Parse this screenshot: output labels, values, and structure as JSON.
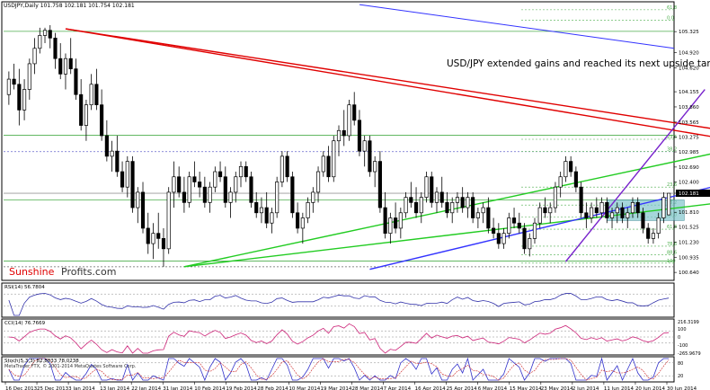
{
  "chart_data": {
    "type": "candlestick",
    "title": "USDJPY,Daily  101.758 102.181 101.754 102.181",
    "annotation": "USD/JPY extended gains and reached its next upside target.",
    "watermark": {
      "part1": "Sunshine",
      "part2": "Profits.com"
    },
    "copyright": "MetaTrader FTX, © 2001-2014 MetaQuotes Software Corp.",
    "current_price": "102.181",
    "price_ylim": [
      100.52,
      105.87
    ],
    "price_ticks": [
      "105.325",
      "104.920",
      "104.620",
      "104.155",
      "103.860",
      "103.565",
      "103.275",
      "102.985",
      "102.690",
      "102.400",
      "102.181",
      "101.810",
      "101.525",
      "101.230",
      "100.935",
      "100.640"
    ],
    "x_tick_labels": [
      "16 Dec 2013",
      "25 Dec 2013",
      "3 Jan 2014",
      "13 Jan 2014",
      "22 Jan 2014",
      "31 Jan 2014",
      "10 Feb 2014",
      "19 Feb 2014",
      "28 Feb 2014",
      "10 Mar 2014",
      "19 Mar 2014",
      "28 Mar 2014",
      "7 Apr 2014",
      "16 Apr 2014",
      "25 Apr 2014",
      "6 May 2014",
      "15 May 2014",
      "23 May 2014",
      "2 Jun 2014",
      "11 Jun 2014",
      "20 Jun 2014",
      "30 Jun 2014"
    ],
    "fib_labels": [
      "61.8",
      "0.0",
      "23.6",
      "38.2",
      "23.6",
      "38.2",
      "50.0",
      "61.8",
      "78.6",
      "88.6",
      "100"
    ],
    "candles": [
      [
        104.1,
        104.55,
        103.9,
        104.4
      ],
      [
        104.4,
        104.7,
        104.2,
        104.3
      ],
      [
        104.3,
        104.6,
        103.5,
        103.8
      ],
      [
        103.8,
        104.4,
        103.6,
        104.2
      ],
      [
        104.2,
        104.8,
        104.0,
        104.7
      ],
      [
        104.7,
        105.2,
        104.5,
        105.0
      ],
      [
        105.0,
        105.4,
        104.9,
        105.25
      ],
      [
        105.25,
        105.4,
        105.1,
        105.35
      ],
      [
        105.35,
        105.45,
        105.0,
        105.2
      ],
      [
        105.2,
        105.3,
        104.6,
        104.8
      ],
      [
        104.8,
        105.1,
        104.4,
        104.5
      ],
      [
        104.5,
        104.9,
        104.2,
        104.8
      ],
      [
        104.8,
        105.2,
        104.5,
        104.6
      ],
      [
        104.6,
        104.8,
        104.0,
        104.1
      ],
      [
        104.1,
        104.4,
        103.4,
        103.5
      ],
      [
        103.5,
        104.0,
        103.2,
        103.9
      ],
      [
        103.9,
        104.5,
        103.8,
        104.3
      ],
      [
        104.3,
        104.6,
        103.8,
        103.9
      ],
      [
        103.9,
        104.2,
        103.2,
        103.3
      ],
      [
        103.3,
        103.6,
        102.8,
        102.9
      ],
      [
        102.9,
        103.2,
        102.6,
        103.0
      ],
      [
        103.0,
        103.3,
        102.5,
        102.6
      ],
      [
        102.6,
        102.8,
        102.2,
        102.3
      ],
      [
        102.3,
        102.9,
        102.1,
        102.8
      ],
      [
        102.8,
        102.9,
        101.8,
        101.9
      ],
      [
        101.9,
        102.3,
        101.6,
        102.2
      ],
      [
        102.2,
        102.4,
        101.4,
        101.5
      ],
      [
        101.5,
        101.8,
        101.0,
        101.2
      ],
      [
        101.2,
        101.6,
        100.9,
        101.4
      ],
      [
        101.4,
        101.8,
        101.1,
        101.3
      ],
      [
        101.3,
        101.5,
        100.75,
        101.1
      ],
      [
        101.1,
        102.3,
        101.0,
        102.2
      ],
      [
        102.2,
        102.8,
        101.9,
        102.5
      ],
      [
        102.5,
        102.7,
        102.1,
        102.2
      ],
      [
        102.2,
        102.5,
        101.8,
        102.0
      ],
      [
        102.0,
        102.6,
        101.9,
        102.5
      ],
      [
        102.5,
        102.8,
        102.3,
        102.4
      ],
      [
        102.4,
        102.6,
        102.1,
        102.3
      ],
      [
        102.3,
        102.5,
        101.9,
        102.0
      ],
      [
        102.0,
        102.4,
        101.8,
        102.3
      ],
      [
        102.3,
        102.7,
        102.2,
        102.6
      ],
      [
        102.6,
        102.8,
        102.4,
        102.5
      ],
      [
        102.5,
        102.7,
        101.9,
        102.0
      ],
      [
        102.0,
        102.3,
        101.7,
        102.2
      ],
      [
        102.2,
        102.6,
        102.0,
        102.5
      ],
      [
        102.5,
        102.8,
        102.3,
        102.7
      ],
      [
        102.7,
        102.8,
        102.4,
        102.5
      ],
      [
        102.5,
        102.6,
        101.9,
        102.0
      ],
      [
        102.0,
        102.2,
        101.7,
        101.8
      ],
      [
        101.8,
        102.1,
        101.6,
        101.9
      ],
      [
        101.9,
        102.2,
        101.5,
        101.6
      ],
      [
        101.6,
        101.9,
        101.4,
        101.8
      ],
      [
        101.8,
        102.5,
        101.7,
        102.4
      ],
      [
        102.4,
        103.0,
        102.3,
        102.9
      ],
      [
        102.9,
        103.0,
        102.4,
        102.5
      ],
      [
        102.5,
        102.6,
        101.7,
        101.8
      ],
      [
        101.8,
        102.0,
        101.4,
        101.5
      ],
      [
        101.5,
        101.8,
        101.2,
        101.7
      ],
      [
        101.7,
        102.1,
        101.6,
        102.0
      ],
      [
        102.0,
        102.3,
        101.8,
        102.2
      ],
      [
        102.2,
        102.7,
        102.0,
        102.6
      ],
      [
        102.6,
        103.0,
        102.5,
        102.9
      ],
      [
        102.9,
        103.1,
        102.4,
        102.5
      ],
      [
        102.5,
        103.3,
        102.4,
        103.2
      ],
      [
        103.2,
        103.5,
        102.9,
        103.4
      ],
      [
        103.4,
        103.8,
        103.1,
        103.3
      ],
      [
        103.3,
        104.0,
        103.2,
        103.9
      ],
      [
        103.9,
        104.15,
        103.5,
        103.6
      ],
      [
        103.6,
        103.8,
        102.9,
        103.0
      ],
      [
        103.0,
        103.3,
        102.7,
        103.2
      ],
      [
        103.2,
        103.3,
        102.5,
        102.6
      ],
      [
        102.6,
        102.9,
        102.3,
        102.8
      ],
      [
        102.8,
        103.0,
        101.8,
        101.9
      ],
      [
        101.9,
        102.2,
        101.3,
        101.4
      ],
      [
        101.4,
        101.8,
        101.2,
        101.7
      ],
      [
        101.7,
        102.0,
        101.4,
        101.5
      ],
      [
        101.5,
        101.9,
        101.3,
        101.8
      ],
      [
        101.8,
        102.2,
        101.7,
        102.1
      ],
      [
        102.1,
        102.4,
        101.9,
        102.0
      ],
      [
        102.0,
        102.3,
        101.7,
        101.8
      ],
      [
        101.8,
        102.2,
        101.6,
        102.1
      ],
      [
        102.1,
        102.6,
        102.0,
        102.5
      ],
      [
        102.5,
        102.6,
        101.9,
        102.0
      ],
      [
        102.0,
        102.3,
        101.8,
        102.2
      ],
      [
        102.2,
        102.5,
        101.9,
        102.0
      ],
      [
        102.0,
        102.2,
        101.7,
        101.8
      ],
      [
        101.8,
        102.1,
        101.6,
        102.0
      ],
      [
        102.0,
        102.2,
        101.8,
        102.1
      ],
      [
        102.1,
        102.3,
        101.8,
        101.9
      ],
      [
        101.9,
        102.2,
        101.7,
        102.1
      ],
      [
        102.1,
        102.2,
        101.6,
        101.7
      ],
      [
        101.7,
        101.9,
        101.5,
        101.8
      ],
      [
        101.8,
        102.0,
        101.6,
        101.9
      ],
      [
        101.9,
        102.1,
        101.4,
        101.5
      ],
      [
        101.5,
        101.7,
        101.3,
        101.4
      ],
      [
        101.4,
        101.6,
        101.1,
        101.2
      ],
      [
        101.2,
        101.5,
        101.1,
        101.4
      ],
      [
        101.4,
        101.8,
        101.3,
        101.7
      ],
      [
        101.7,
        101.9,
        101.5,
        101.6
      ],
      [
        101.6,
        101.8,
        101.4,
        101.5
      ],
      [
        101.5,
        101.6,
        101.0,
        101.1
      ],
      [
        101.1,
        101.4,
        100.95,
        101.3
      ],
      [
        101.3,
        101.7,
        101.2,
        101.6
      ],
      [
        101.6,
        102.0,
        101.5,
        101.9
      ],
      [
        101.9,
        102.1,
        101.7,
        101.8
      ],
      [
        101.8,
        102.0,
        101.6,
        101.9
      ],
      [
        101.9,
        102.4,
        101.8,
        102.3
      ],
      [
        102.3,
        102.6,
        102.1,
        102.5
      ],
      [
        102.5,
        102.9,
        102.4,
        102.8
      ],
      [
        102.8,
        102.9,
        102.5,
        102.6
      ],
      [
        102.6,
        102.7,
        102.2,
        102.3
      ],
      [
        102.3,
        102.4,
        101.7,
        101.8
      ],
      [
        101.8,
        102.0,
        101.5,
        101.7
      ],
      [
        101.7,
        102.0,
        101.6,
        101.9
      ],
      [
        101.9,
        102.1,
        101.7,
        101.8
      ],
      [
        101.8,
        102.1,
        101.7,
        102.0
      ],
      [
        102.0,
        102.1,
        101.6,
        101.7
      ],
      [
        101.7,
        101.9,
        101.5,
        101.8
      ],
      [
        101.8,
        102.0,
        101.6,
        101.9
      ],
      [
        101.9,
        102.0,
        101.6,
        101.7
      ],
      [
        101.7,
        101.9,
        101.5,
        101.8
      ],
      [
        101.8,
        102.1,
        101.7,
        102.0
      ],
      [
        102.0,
        102.1,
        101.7,
        101.8
      ],
      [
        101.8,
        101.9,
        101.4,
        101.5
      ],
      [
        101.5,
        101.6,
        101.2,
        101.3
      ],
      [
        101.3,
        101.5,
        101.2,
        101.4
      ],
      [
        101.4,
        101.8,
        101.3,
        101.7
      ],
      [
        101.7,
        102.2,
        101.6,
        102.1
      ],
      [
        101.76,
        102.18,
        101.75,
        102.18
      ]
    ],
    "lines": [
      {
        "type": "resistance",
        "color": "#e00000",
        "points": [
          [
            11,
            105.38
          ],
          [
            155,
            102.97
          ]
        ]
      },
      {
        "type": "resistance",
        "color": "#e00000",
        "points": [
          [
            11,
            105.38
          ],
          [
            155,
            103.15
          ]
        ]
      },
      {
        "type": "support",
        "color": "#22cc22",
        "points": [
          [
            34,
            100.75
          ],
          [
            155,
            103.35
          ]
        ]
      },
      {
        "type": "support",
        "color": "#22cc22",
        "points": [
          [
            34,
            100.75
          ],
          [
            155,
            102.2
          ]
        ]
      },
      {
        "type": "trend",
        "color": "#3333ff",
        "points": [
          [
            70,
            100.7
          ],
          [
            155,
            102.75
          ]
        ]
      },
      {
        "type": "trend",
        "color": "#7722cc",
        "points": [
          [
            108,
            100.85
          ],
          [
            135,
            104.2
          ]
        ]
      }
    ],
    "rsi": {
      "label": "RSI(14) 56.7804",
      "levels": [
        70,
        30
      ]
    },
    "cci": {
      "label": "CCI(14) 76.7669",
      "tick_labels": [
        "216.3199",
        "100",
        "0",
        "-100",
        "-265.9679"
      ]
    },
    "stoch": {
      "label": "Stoch(5,3,3) 82.8833 78.0238",
      "tick_labels": [
        "80",
        "20"
      ]
    }
  }
}
